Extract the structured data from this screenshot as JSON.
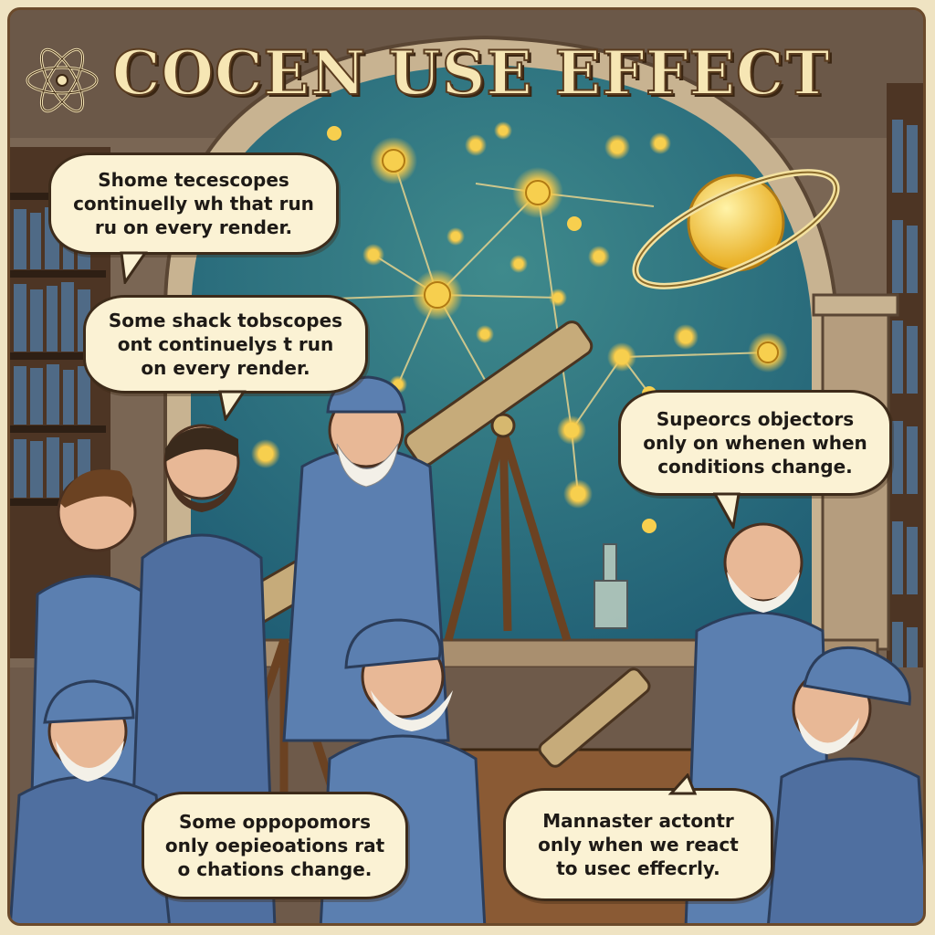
{
  "title": "COCEN USE EFFECT",
  "bubbles": {
    "top_left": "Shome tecescopes\ncontinuelly wh that run\nru on every render.",
    "mid_left": "Some shack tobscopes\nont continuelys t run\non every render.",
    "right": "Supeorcs objectors\nonly on whenen when\nconditions change.",
    "bottom_left": "Some oppopomors\nonly oepieoations rat\no chations change.",
    "bottom_right": "Mannaster actontr\nonly when we react\nto usec effecrly."
  },
  "icons": [
    "atom-icon",
    "ringed-planet-icon",
    "telescope-icon"
  ],
  "colors": {
    "sky": "#3f8a8c",
    "sky_top": "#1f5d74",
    "robe": "#5b7fb0",
    "stone": "#a98f6f",
    "bubble": "#fbf2d4",
    "star": "#f4c84a"
  }
}
